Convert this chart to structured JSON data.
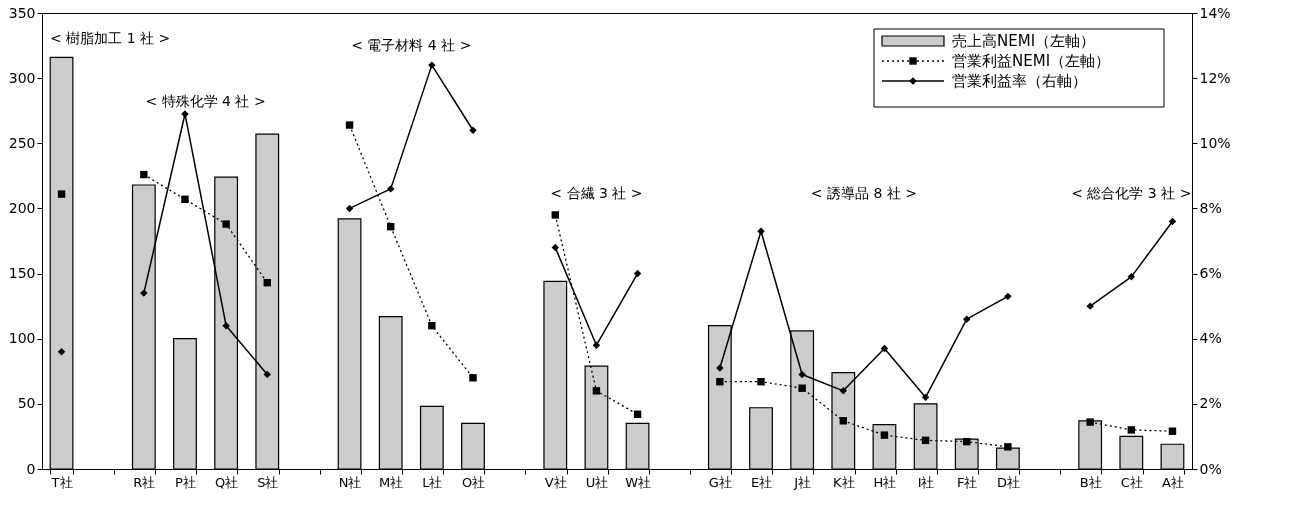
{
  "chart_data": {
    "type": "bar",
    "categories": [
      "T社",
      null,
      "R社",
      "P社",
      "Q社",
      "S社",
      null,
      "N社",
      "M社",
      "L社",
      "O社",
      null,
      "V社",
      "U社",
      "W社",
      null,
      "G社",
      "E社",
      "J社",
      "K社",
      "H社",
      "I社",
      "F社",
      "D社",
      null,
      "B社",
      "C社",
      "A社"
    ],
    "series": [
      {
        "name": "売上高NEMI（左軸）",
        "color": "#cccccc",
        "values": [
          316,
          null,
          218,
          100,
          224,
          257,
          null,
          192,
          117,
          48,
          35,
          null,
          144,
          79,
          35,
          null,
          110,
          47,
          106,
          74,
          34,
          50,
          23,
          16,
          null,
          37,
          25,
          19
        ]
      },
      {
        "name": "営業利益NEMI（左軸）",
        "type": "line",
        "color": "#000000",
        "marker": "square",
        "line_style": "dotted",
        "values": [
          211,
          null,
          226,
          207,
          188,
          143,
          null,
          264,
          186,
          110,
          70,
          null,
          195,
          60,
          42,
          null,
          67,
          67,
          62,
          37,
          26,
          22,
          21,
          17,
          null,
          36,
          30,
          29
        ]
      },
      {
        "name": "営業利益率（右軸）",
        "type": "line",
        "axis": "y2",
        "color": "#000000",
        "marker": "diamond",
        "line_style": "solid",
        "values": [
          3.6,
          null,
          5.4,
          10.9,
          4.4,
          2.9,
          null,
          8.0,
          8.6,
          12.4,
          10.4,
          null,
          6.8,
          3.8,
          6.0,
          null,
          3.1,
          7.3,
          2.9,
          2.4,
          3.7,
          2.2,
          4.6,
          5.3,
          null,
          5.0,
          5.9,
          7.6
        ]
      }
    ],
    "ylim": [
      0,
      350
    ],
    "yticks": [
      0,
      50,
      100,
      150,
      200,
      250,
      300,
      350
    ],
    "y2lim": [
      0,
      14
    ],
    "y2ticks": [
      {
        "value": 0,
        "label": "0%"
      },
      {
        "value": 2,
        "label": "2%"
      },
      {
        "value": 4,
        "label": "4%"
      },
      {
        "value": 6,
        "label": "6%"
      },
      {
        "value": 8,
        "label": "8%"
      },
      {
        "value": 10,
        "label": "10%"
      },
      {
        "value": 12,
        "label": "12%"
      },
      {
        "value": 14,
        "label": "14%"
      }
    ],
    "annotations": [
      "< 樹脂加工 1 社 >",
      "< 特殊化学 4 社 >",
      "< 電子材料 4 社 >",
      "< 合繊 3 社 >",
      "< 誘導品 8 社 >",
      "< 総合化学 3 社 >"
    ],
    "legend": "top right",
    "grid": false
  }
}
